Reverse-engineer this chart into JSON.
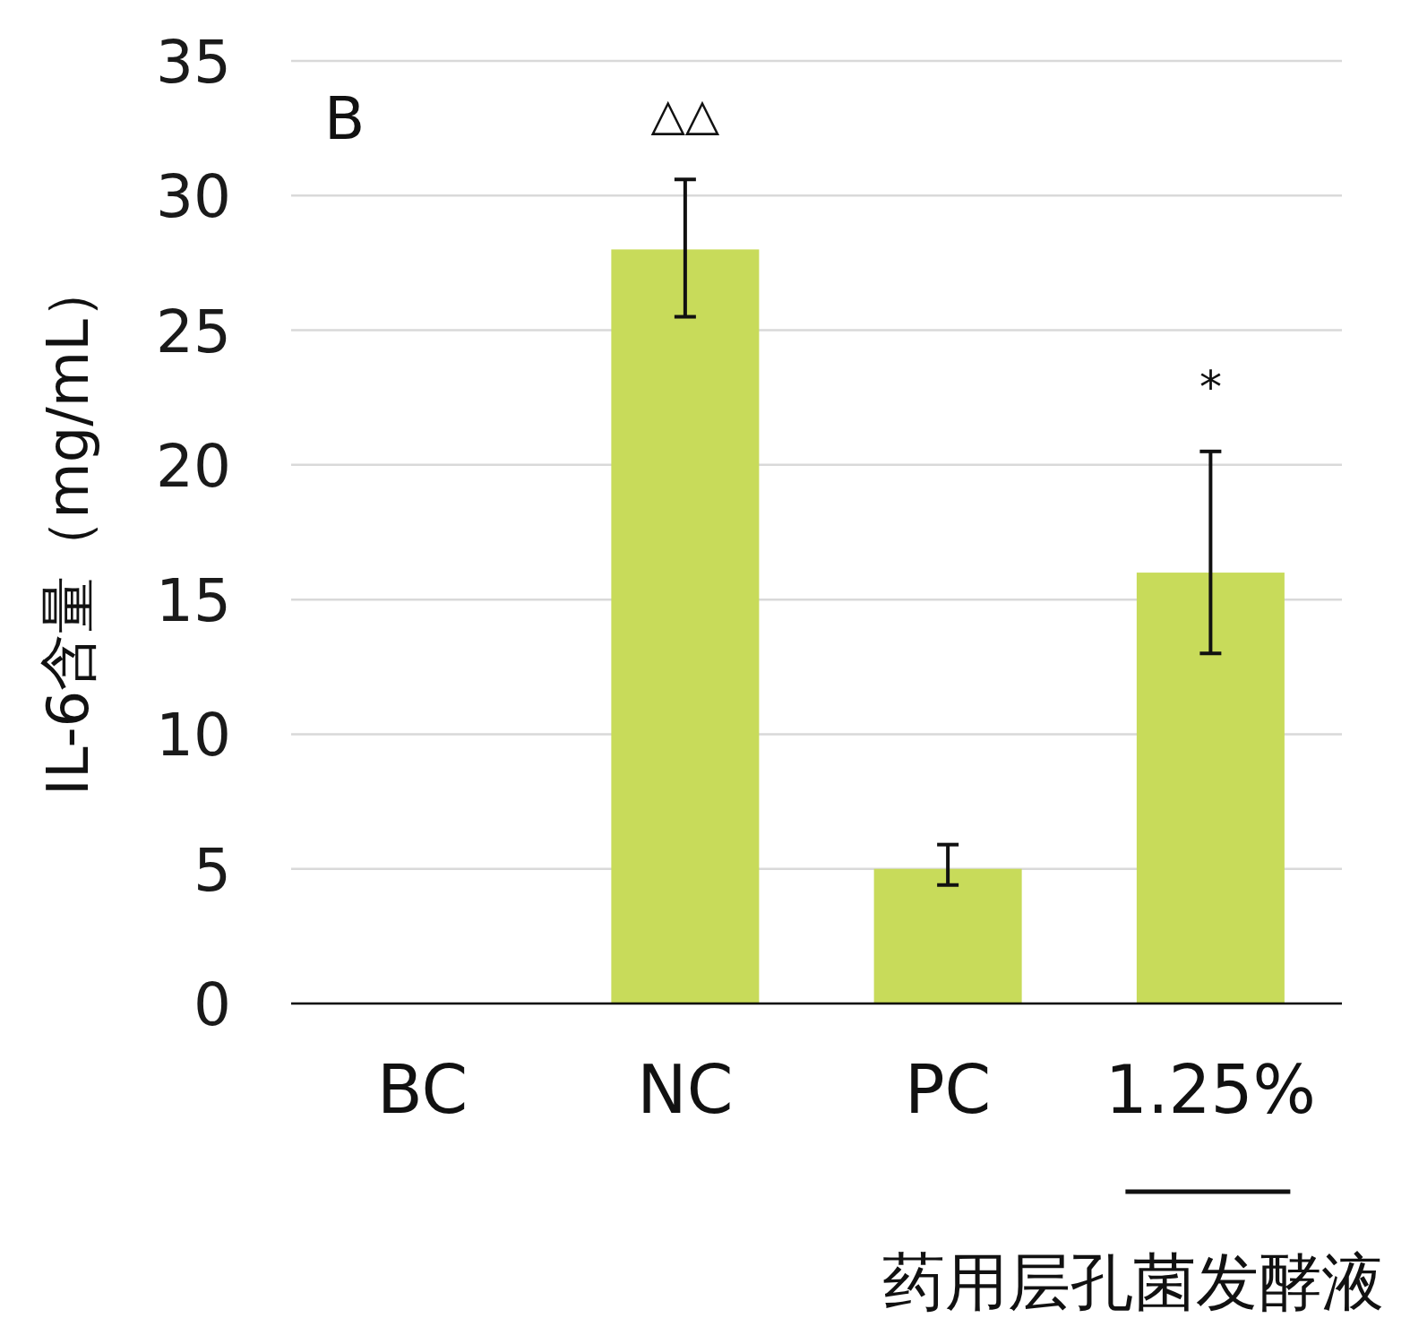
{
  "chart_data": {
    "type": "bar",
    "ylabel": "IL-6含量（mg/mL）",
    "categories": [
      "BC",
      "NC",
      "PC",
      "1.25%"
    ],
    "values": [
      0,
      28,
      5,
      16
    ],
    "errors": [
      null,
      [
        25.5,
        30.6
      ],
      [
        4.4,
        5.9
      ],
      [
        13,
        20.5
      ]
    ],
    "color": "#c8db5a",
    "ylim": [
      0,
      35
    ],
    "yticks": [
      0,
      5,
      10,
      15,
      20,
      25,
      30,
      35
    ],
    "grid": "y",
    "annotations": [
      "B",
      "△△",
      "*",
      "药用层孔菌发酵液"
    ]
  }
}
